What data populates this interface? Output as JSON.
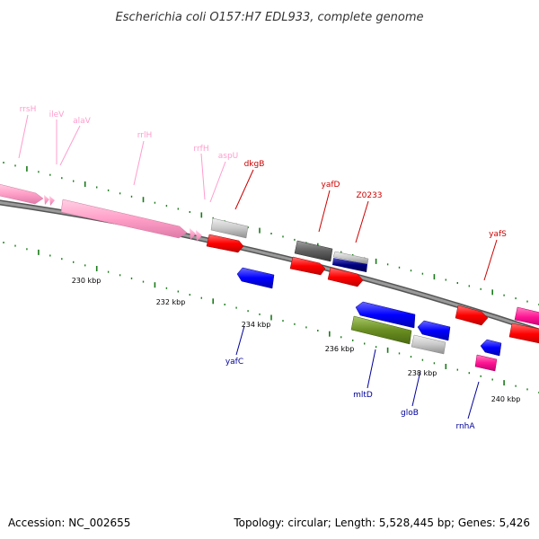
{
  "title": "Escherichia coli O157:H7 EDL933, complete genome",
  "footer": {
    "accession": "Accession: NC_002655",
    "summary": "Topology: circular; Length: 5,528,445 bp; Genes: 5,426"
  },
  "colors": {
    "backbone": "#808080",
    "tick": "#1a7a1a",
    "rrna": "#ffa0c8",
    "trna": "#ffa0c8",
    "forward_gene": "#ff0000",
    "reverse_gene": "#0000ff",
    "label_rrna": "#ff9ccc",
    "label_forward": "#cc0000",
    "label_reverse": "#000099"
  },
  "scale_labels": [
    "230 kbp",
    "232 kbp",
    "234 kbp",
    "236 kbp",
    "238 kbp",
    "240 kbp"
  ],
  "gene_labels": {
    "rrsH": "rrsH",
    "ileV": "ileV",
    "alaV": "alaV",
    "rrlH": "rrlH",
    "rrfH": "rrfH",
    "aspU": "aspU",
    "dkgB": "dkgB",
    "yafD": "yafD",
    "Z0233": "Z0233",
    "yafS": "yafS",
    "yafC": "yafC",
    "mltD": "mltD",
    "gloB": "gloB",
    "rnhA": "rnhA"
  }
}
